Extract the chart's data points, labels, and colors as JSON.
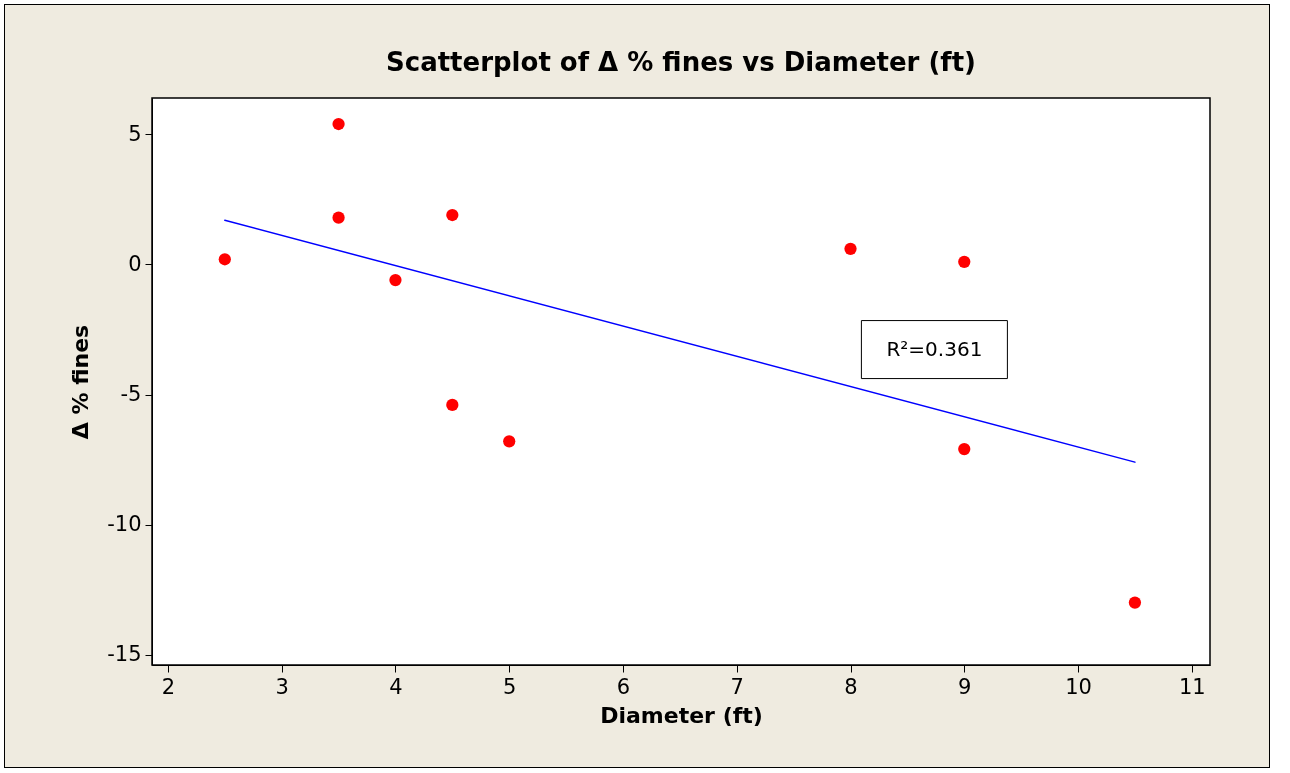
{
  "chart_data": {
    "type": "scatter",
    "title": "Scatterplot of Δ % fines vs Diameter (ft)",
    "xlabel": "Diameter (ft)",
    "ylabel": "Δ % fines",
    "annotations": [
      "R²=0.361"
    ],
    "grid": false,
    "xlim": [
      1.86,
      11.16
    ],
    "xticks": [
      2,
      3,
      4,
      5,
      6,
      7,
      8,
      9,
      10,
      11
    ],
    "ylim": [
      -15.4,
      6.4
    ],
    "yticks": [
      -15,
      -10,
      -5,
      0,
      5
    ],
    "series": [
      {
        "marker": "circle",
        "color": "#ff0000",
        "x": [
          2.5,
          3.5,
          3.5,
          4.0,
          4.5,
          4.5,
          5.0,
          8.0,
          9.0,
          9.0,
          10.5
        ],
        "values": [
          0.2,
          5.4,
          1.8,
          -0.6,
          1.9,
          -5.4,
          -6.8,
          0.6,
          0.1,
          -7.1,
          -13.0
        ]
      },
      {
        "type": "line",
        "color": "#0000ff",
        "x": [
          2.5,
          10.5
        ],
        "values": [
          1.7,
          -7.6
        ]
      }
    ]
  }
}
